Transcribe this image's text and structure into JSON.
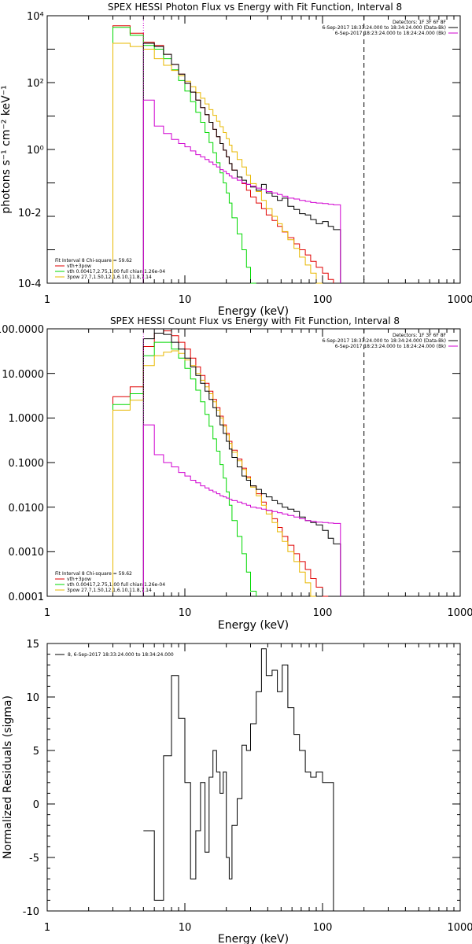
{
  "colors": {
    "total": "#e00000",
    "thermal": "#00d800",
    "power": "#e8b800",
    "background": "#d000d0",
    "data": "#000000"
  },
  "chart_data": [
    {
      "type": "line",
      "title": "SPEX HESSI Photon Flux vs Energy with Fit Function, Interval 8",
      "xlabel": "Energy (keV)",
      "ylabel": "photons s⁻¹ cm⁻² keV⁻¹",
      "xscale": "log",
      "yscale": "log",
      "xlim": [
        1,
        1000
      ],
      "ylim": [
        0.0001,
        10000
      ],
      "xticks": [
        "1",
        "10",
        "100",
        "1000"
      ],
      "yticks": [
        "10-4",
        "10-2",
        "10⁰",
        "10²",
        "10⁴"
      ],
      "legend_top": [
        "Detectors: 1F 3F 6F 8F",
        "6-Sep-2017 18:33:24.000 to 18:34:24.000 (Data-Bk)",
        "6-Sep-2017 18:23:24.000 to 18:24:24.000 (Bk)"
      ],
      "legend_bottom": [
        "Fit Interval 8   Chi-square = 59.62",
        "vth+3pow",
        "vth 0.00417,2.75,1.00  full chian 1.26e-04",
        "3pow 27.7,1.50,12.1,6.10,11.8,7.14"
      ],
      "edges": [
        3.0,
        4.0,
        5.0,
        6.0,
        7.0,
        8.0,
        9.0,
        10.0,
        11.0,
        12.0,
        13.0,
        14.0,
        15.0,
        16.0,
        17.0,
        18.0,
        19.0,
        20.0,
        21.0,
        22.0,
        24.0,
        26.0,
        28.0,
        30.0,
        33.0,
        36.0,
        39.0,
        43.0,
        47.0,
        51.0,
        56.0,
        62.0,
        68.0,
        75.0,
        82.0,
        90.0,
        100.0,
        110.0,
        120.0,
        135.0,
        150.0,
        170.0,
        200.0
      ],
      "series": [
        {
          "name": "vth+3pow",
          "color_key": "total",
          "start": 3.0,
          "values": [
            5000,
            3000,
            1600,
            1300,
            700,
            350,
            180,
            95,
            52,
            30,
            18,
            11,
            6.5,
            4,
            2.4,
            1.5,
            0.95,
            0.6,
            0.38,
            0.24,
            0.15,
            0.095,
            0.06,
            0.038,
            0.025,
            0.017,
            0.011,
            0.0075,
            0.005,
            0.0034,
            0.0023,
            0.0015,
            0.001,
            0.0007,
            0.00045,
            0.0003,
            0.0002,
            0.00013
          ]
        },
        {
          "name": "vth",
          "color_key": "thermal",
          "start": 3.0,
          "values": [
            4500,
            2600,
            1300,
            1000,
            520,
            240,
            115,
            56,
            27,
            13,
            6.5,
            3.2,
            1.6,
            0.8,
            0.4,
            0.2,
            0.1,
            0.05,
            0.025,
            0.009,
            0.003,
            0.001,
            0.0003,
            0.0001
          ]
        },
        {
          "name": "3pow",
          "color_key": "power",
          "start": 3.0,
          "values": [
            1500,
            1200,
            1000,
            520,
            330,
            230,
            160,
            110,
            75,
            50,
            34,
            23,
            15.5,
            10.5,
            7,
            4.8,
            3.2,
            2.1,
            1.35,
            0.85,
            0.5,
            0.3,
            0.17,
            0.095,
            0.055,
            0.03,
            0.017,
            0.01,
            0.006,
            0.0035,
            0.002,
            0.0011,
            0.0006,
            0.00035,
            0.0002,
            0.0001
          ]
        },
        {
          "name": "Data-Bk",
          "color_key": "data",
          "start": 5.0,
          "values": [
            1500,
            1200,
            700,
            350,
            180,
            95,
            52,
            30,
            18,
            11,
            6.5,
            4,
            2.4,
            1.5,
            0.95,
            0.6,
            0.38,
            0.24,
            0.15,
            0.12,
            0.09,
            0.075,
            0.06,
            0.09,
            0.05,
            0.04,
            0.03,
            0.035,
            0.02,
            0.016,
            0.012,
            0.011,
            0.008,
            0.006,
            0.007,
            0.005,
            0.004
          ]
        },
        {
          "name": "Bk",
          "color_key": "background",
          "start": 5.0,
          "values": [
            30,
            5,
            3,
            2,
            1.5,
            1.2,
            0.9,
            0.7,
            0.6,
            0.5,
            0.42,
            0.35,
            0.3,
            0.25,
            0.22,
            0.19,
            0.16,
            0.14,
            0.12,
            0.1,
            0.09,
            0.08,
            0.07,
            0.065,
            0.055,
            0.05,
            0.045,
            0.04,
            0.035,
            0.033,
            0.03,
            0.028,
            0.026,
            0.025,
            0.024,
            0.023,
            0.022
          ]
        }
      ],
      "vlines": [
        {
          "x": 5.0,
          "style": "dotted"
        },
        {
          "x": 200,
          "style": "dashed"
        }
      ]
    },
    {
      "type": "line",
      "title": "SPEX HESSI Count Flux vs Energy with Fit Function, Interval 8",
      "xlabel": "Energy (keV)",
      "ylabel": "",
      "xscale": "log",
      "yscale": "log",
      "xlim": [
        1,
        1000
      ],
      "ylim": [
        0.0001,
        100
      ],
      "xticks": [
        "1",
        "10",
        "100",
        "1000"
      ],
      "yticks": [
        "0.0001",
        "0.0010",
        "0.0100",
        "0.1000",
        "1.0000",
        "10.0000",
        "100.0000"
      ],
      "legend_top": [
        "Detectors: 1F 3F 6F 8F",
        "6-Sep-2017 18:33:24.000 to 18:34:24.000 (Data-Bk)",
        "6-Sep-2017 18:23:24.000 to 18:24:24.000 (Bk)"
      ],
      "legend_bottom": [
        "Fit Interval 8   Chi-square = 59.62",
        "vth+3pow",
        "vth 0.00417,2.75,1.00  full chian 1.26e-04",
        "3pow 27.7,1.50,12.1,6.10,11.8,7.14"
      ],
      "edges": [
        3.0,
        4.0,
        5.0,
        6.0,
        7.0,
        8.0,
        9.0,
        10.0,
        11.0,
        12.0,
        13.0,
        14.0,
        15.0,
        16.0,
        17.0,
        18.0,
        19.0,
        20.0,
        21.0,
        22.0,
        24.0,
        26.0,
        28.0,
        30.0,
        33.0,
        36.0,
        39.0,
        43.0,
        47.0,
        51.0,
        56.0,
        62.0,
        68.0,
        75.0,
        82.0,
        90.0,
        100.0,
        110.0,
        120.0,
        135.0,
        150.0,
        170.0,
        200.0
      ],
      "series": [
        {
          "name": "vth+3pow",
          "color_key": "total",
          "start": 3.0,
          "values": [
            3,
            5,
            40,
            80,
            90,
            70,
            50,
            35,
            22,
            14,
            9,
            6,
            4,
            2.6,
            1.7,
            1.1,
            0.7,
            0.45,
            0.3,
            0.19,
            0.12,
            0.075,
            0.048,
            0.03,
            0.02,
            0.013,
            0.0085,
            0.0055,
            0.0035,
            0.0022,
            0.0014,
            0.0009,
            0.0006,
            0.0004,
            0.00025,
            0.00016,
            0.0001
          ]
        },
        {
          "name": "vth",
          "color_key": "thermal",
          "start": 3.0,
          "values": [
            2,
            3.5,
            25,
            50,
            50,
            35,
            22,
            13,
            7.5,
            4.2,
            2.3,
            1.2,
            0.65,
            0.34,
            0.18,
            0.09,
            0.045,
            0.022,
            0.011,
            0.005,
            0.0022,
            0.0009,
            0.00035,
            0.00013
          ]
        },
        {
          "name": "3pow",
          "color_key": "power",
          "start": 3.0,
          "values": [
            1.5,
            2.5,
            15,
            25,
            30,
            32,
            28,
            20,
            15,
            10,
            7,
            5,
            3.5,
            2.3,
            1.5,
            1,
            0.65,
            0.42,
            0.27,
            0.17,
            0.11,
            0.07,
            0.045,
            0.028,
            0.018,
            0.011,
            0.007,
            0.0045,
            0.0028,
            0.0017,
            0.001,
            0.0006,
            0.00035,
            0.0002,
            0.0001
          ]
        },
        {
          "name": "Data-Bk",
          "color_key": "data",
          "start": 5.0,
          "values": [
            60,
            80,
            75,
            50,
            35,
            22,
            14,
            9,
            6,
            4,
            2.6,
            1.7,
            1.1,
            0.7,
            0.45,
            0.3,
            0.2,
            0.13,
            0.08,
            0.05,
            0.04,
            0.03,
            0.025,
            0.02,
            0.017,
            0.014,
            0.012,
            0.01,
            0.009,
            0.008,
            0.006,
            0.005,
            0.0045,
            0.004,
            0.003,
            0.002,
            0.0015
          ]
        },
        {
          "name": "Bk",
          "color_key": "background",
          "start": 5.0,
          "values": [
            0.7,
            0.15,
            0.1,
            0.08,
            0.06,
            0.05,
            0.04,
            0.035,
            0.03,
            0.027,
            0.024,
            0.022,
            0.02,
            0.018,
            0.017,
            0.016,
            0.015,
            0.014,
            0.013,
            0.012,
            0.011,
            0.01,
            0.0095,
            0.009,
            0.0085,
            0.008,
            0.0075,
            0.007,
            0.0065,
            0.006,
            0.0055,
            0.005,
            0.0048,
            0.0046,
            0.0045,
            0.0044,
            0.0043
          ]
        }
      ],
      "vlines": [
        {
          "x": 5.0,
          "style": "dotted"
        },
        {
          "x": 200,
          "style": "dashed"
        }
      ]
    },
    {
      "type": "line",
      "title": "",
      "xlabel": "Energy (keV)",
      "ylabel": "Normalized Residuals (sigma)",
      "xscale": "log",
      "yscale": "linear",
      "xlim": [
        1,
        1000
      ],
      "ylim": [
        -10,
        15
      ],
      "xticks": [
        "1",
        "10",
        "100",
        "1000"
      ],
      "yticks": [
        "-10",
        "-5",
        "0",
        "5",
        "10",
        "15"
      ],
      "legend_top": [
        "8,  6-Sep-2017 18:33:24.000 to 18:34:24.000"
      ],
      "edges": [
        5.0,
        6.0,
        7.0,
        8.0,
        9.0,
        10.0,
        11.0,
        12.0,
        13.0,
        14.0,
        15.0,
        16.0,
        17.0,
        18.0,
        19.0,
        20.0,
        21.0,
        22.0,
        24.0,
        26.0,
        28.0,
        30.0,
        33.0,
        36.0,
        39.0,
        43.0,
        47.0,
        51.0,
        56.0,
        62.0,
        68.0,
        75.0,
        82.0,
        90.0,
        100.0,
        110.0,
        120.0,
        135.0,
        150.0,
        170.0,
        200.0
      ],
      "series": [
        {
          "name": "residuals",
          "color_key": "data",
          "start": 5.0,
          "values": [
            -2.5,
            -9,
            4.5,
            12,
            8,
            2,
            -7,
            -2.5,
            2,
            -4.5,
            2.5,
            5,
            3,
            1,
            3,
            -5,
            -7,
            -2,
            0.5,
            5.5,
            5,
            7.5,
            10.5,
            14.5,
            12,
            12.5,
            10.5,
            13,
            9,
            6.5,
            5,
            3,
            2.5,
            3,
            2,
            2
          ]
        }
      ]
    }
  ]
}
